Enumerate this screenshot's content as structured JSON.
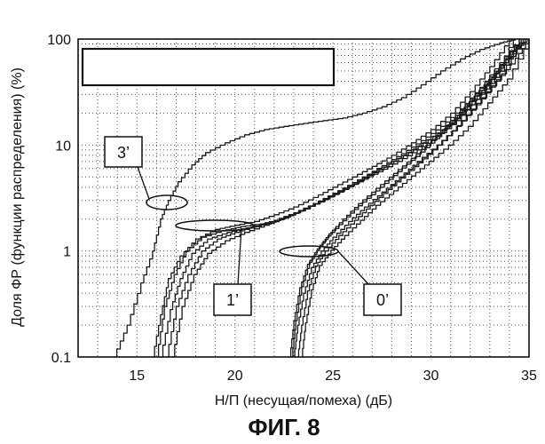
{
  "chart_data": {
    "type": "line",
    "title": "",
    "xlabel": "Н/П (несущая/помеха) (дБ)",
    "ylabel": "Доля ФР (функции распределения) (%)",
    "caption": "ФИГ. 8",
    "x_ticks": [
      "15",
      "20",
      "25",
      "30",
      "35"
    ],
    "y_ticks": [
      "0.1",
      "1",
      "10",
      "100"
    ],
    "xlim": [
      12,
      35
    ],
    "ylim": [
      0.1,
      100
    ],
    "y_scale": "log",
    "grid": true,
    "legend_placement": "top-left (empty box)",
    "annotations": [
      {
        "label": "3’",
        "x": 16.5,
        "y": 3
      },
      {
        "label": "1’",
        "x": 18.5,
        "y": 1.7
      },
      {
        "label": "0’",
        "x": 24.3,
        "y": 1.0
      }
    ],
    "series": [
      {
        "group": "3’",
        "x": [
          13.8,
          14.5,
          15.2,
          15.8,
          16.2,
          16.6,
          17.1,
          17.8,
          18.5,
          19.5,
          20.5,
          21.5,
          22.5,
          23.5,
          24.5,
          25.5,
          26.5,
          27.5,
          28.5,
          29.5,
          30.5,
          31.5,
          32.5,
          33.5,
          34.3
        ],
        "y": [
          0.1,
          0.2,
          0.5,
          1.0,
          2.0,
          3.0,
          4.5,
          6.5,
          8.5,
          10.5,
          12.5,
          14,
          15,
          16,
          17,
          18,
          20,
          23,
          28,
          37,
          50,
          65,
          80,
          92,
          100
        ]
      },
      {
        "group": "1’",
        "x": [
          15.8,
          16.2,
          16.6,
          17.2,
          18.0,
          19.0,
          20.0,
          21.0,
          22.0,
          23.0,
          24.0,
          25.0,
          26.0,
          27.0,
          28.0,
          29.0,
          30.0,
          31.0,
          32.0,
          33.0,
          34.0
        ],
        "y": [
          0.1,
          0.25,
          0.55,
          0.9,
          1.3,
          1.6,
          1.75,
          1.9,
          2.2,
          2.6,
          3.2,
          4.0,
          5.0,
          6.3,
          8.0,
          10.5,
          14,
          20,
          32,
          55,
          100
        ]
      },
      {
        "group": "1’",
        "x": [
          16.0,
          16.4,
          16.9,
          17.5,
          18.3,
          19.3,
          20.3,
          21.3,
          22.3,
          23.3,
          24.3,
          25.3,
          26.3,
          27.3,
          28.3,
          29.3,
          30.3,
          31.3,
          32.3,
          33.3,
          34.2
        ],
        "y": [
          0.1,
          0.3,
          0.6,
          1.0,
          1.35,
          1.55,
          1.7,
          1.8,
          2.0,
          2.4,
          2.9,
          3.6,
          4.5,
          5.6,
          7.0,
          9.0,
          12,
          17,
          27,
          48,
          100
        ]
      },
      {
        "group": "1’",
        "x": [
          16.2,
          16.7,
          17.2,
          17.8,
          18.6,
          19.6,
          20.6,
          21.6,
          22.6,
          23.6,
          24.6,
          25.6,
          26.6,
          27.6,
          28.6,
          29.6,
          30.6,
          31.6,
          32.6,
          33.6,
          34.5
        ],
        "y": [
          0.1,
          0.28,
          0.55,
          0.95,
          1.3,
          1.5,
          1.65,
          1.8,
          2.1,
          2.5,
          3.1,
          3.9,
          4.9,
          6.2,
          8.0,
          10.5,
          14,
          21,
          33,
          57,
          100
        ]
      },
      {
        "group": "1’",
        "x": [
          16.5,
          17.0,
          17.6,
          18.3,
          19.1,
          20.0,
          21.0,
          22.0,
          23.0,
          24.0,
          25.0,
          26.0,
          27.0,
          28.0,
          29.0,
          30.0,
          31.0,
          32.0,
          33.0,
          34.0,
          34.8
        ],
        "y": [
          0.1,
          0.3,
          0.6,
          1.0,
          1.3,
          1.5,
          1.7,
          1.95,
          2.3,
          2.8,
          3.5,
          4.4,
          5.5,
          7.0,
          9.0,
          12,
          16,
          24,
          38,
          65,
          100
        ]
      },
      {
        "group": "1’",
        "x": [
          16.8,
          17.3,
          17.9,
          18.6,
          19.5,
          20.5,
          21.5,
          22.5,
          23.5,
          24.5,
          25.5,
          26.5,
          27.5,
          28.5,
          29.5,
          30.5,
          31.5,
          32.5,
          33.5,
          34.5
        ],
        "y": [
          0.1,
          0.3,
          0.6,
          0.95,
          1.25,
          1.5,
          1.75,
          2.05,
          2.5,
          3.1,
          3.9,
          5.0,
          6.4,
          8.3,
          11,
          15,
          22,
          35,
          60,
          100
        ]
      },
      {
        "group": "0’",
        "x": [
          22.8,
          23.0,
          23.3,
          23.7,
          24.2,
          24.8,
          25.5,
          26.3,
          27.2,
          28.1,
          29.0,
          30.0,
          31.0,
          32.0,
          33.0,
          34.0,
          34.7
        ],
        "y": [
          0.1,
          0.22,
          0.45,
          0.75,
          1.05,
          1.45,
          2.0,
          2.8,
          3.9,
          5.4,
          7.5,
          11,
          17,
          27,
          44,
          72,
          100
        ]
      },
      {
        "group": "0’",
        "x": [
          23.0,
          23.2,
          23.5,
          23.9,
          24.4,
          25.0,
          25.8,
          26.6,
          27.5,
          28.4,
          29.3,
          30.3,
          31.3,
          32.3,
          33.3,
          34.3,
          35.0
        ],
        "y": [
          0.1,
          0.2,
          0.4,
          0.7,
          1.0,
          1.35,
          1.9,
          2.6,
          3.6,
          5.0,
          7.0,
          10,
          15,
          24,
          40,
          66,
          100
        ]
      },
      {
        "group": "0’",
        "x": [
          23.2,
          23.4,
          23.7,
          24.1,
          24.6,
          25.3,
          26.1,
          26.9,
          27.8,
          28.7,
          29.6,
          30.6,
          31.6,
          32.6,
          33.6,
          34.6
        ],
        "y": [
          0.1,
          0.2,
          0.42,
          0.72,
          1.0,
          1.4,
          1.95,
          2.7,
          3.8,
          5.3,
          7.4,
          11,
          17,
          28,
          47,
          100
        ]
      },
      {
        "group": "0’",
        "x": [
          23.4,
          23.6,
          23.9,
          24.3,
          24.9,
          25.6,
          26.4,
          27.2,
          28.1,
          29.0,
          29.9,
          30.9,
          31.9,
          32.9,
          33.9,
          35.0
        ],
        "y": [
          0.1,
          0.21,
          0.43,
          0.73,
          1.02,
          1.4,
          1.95,
          2.7,
          3.7,
          5.1,
          7.0,
          10,
          15,
          25,
          42,
          100
        ]
      },
      {
        "group": "0’",
        "x": [
          22.9,
          23.1,
          23.4,
          23.8,
          24.3,
          24.9,
          25.7,
          26.5,
          27.4,
          28.3,
          29.2,
          30.2,
          31.2,
          32.2,
          33.2,
          34.2,
          34.9
        ],
        "y": [
          0.1,
          0.22,
          0.46,
          0.78,
          1.1,
          1.5,
          2.1,
          2.9,
          4.0,
          5.6,
          7.8,
          11.5,
          18,
          29,
          47,
          76,
          100
        ]
      }
    ]
  }
}
